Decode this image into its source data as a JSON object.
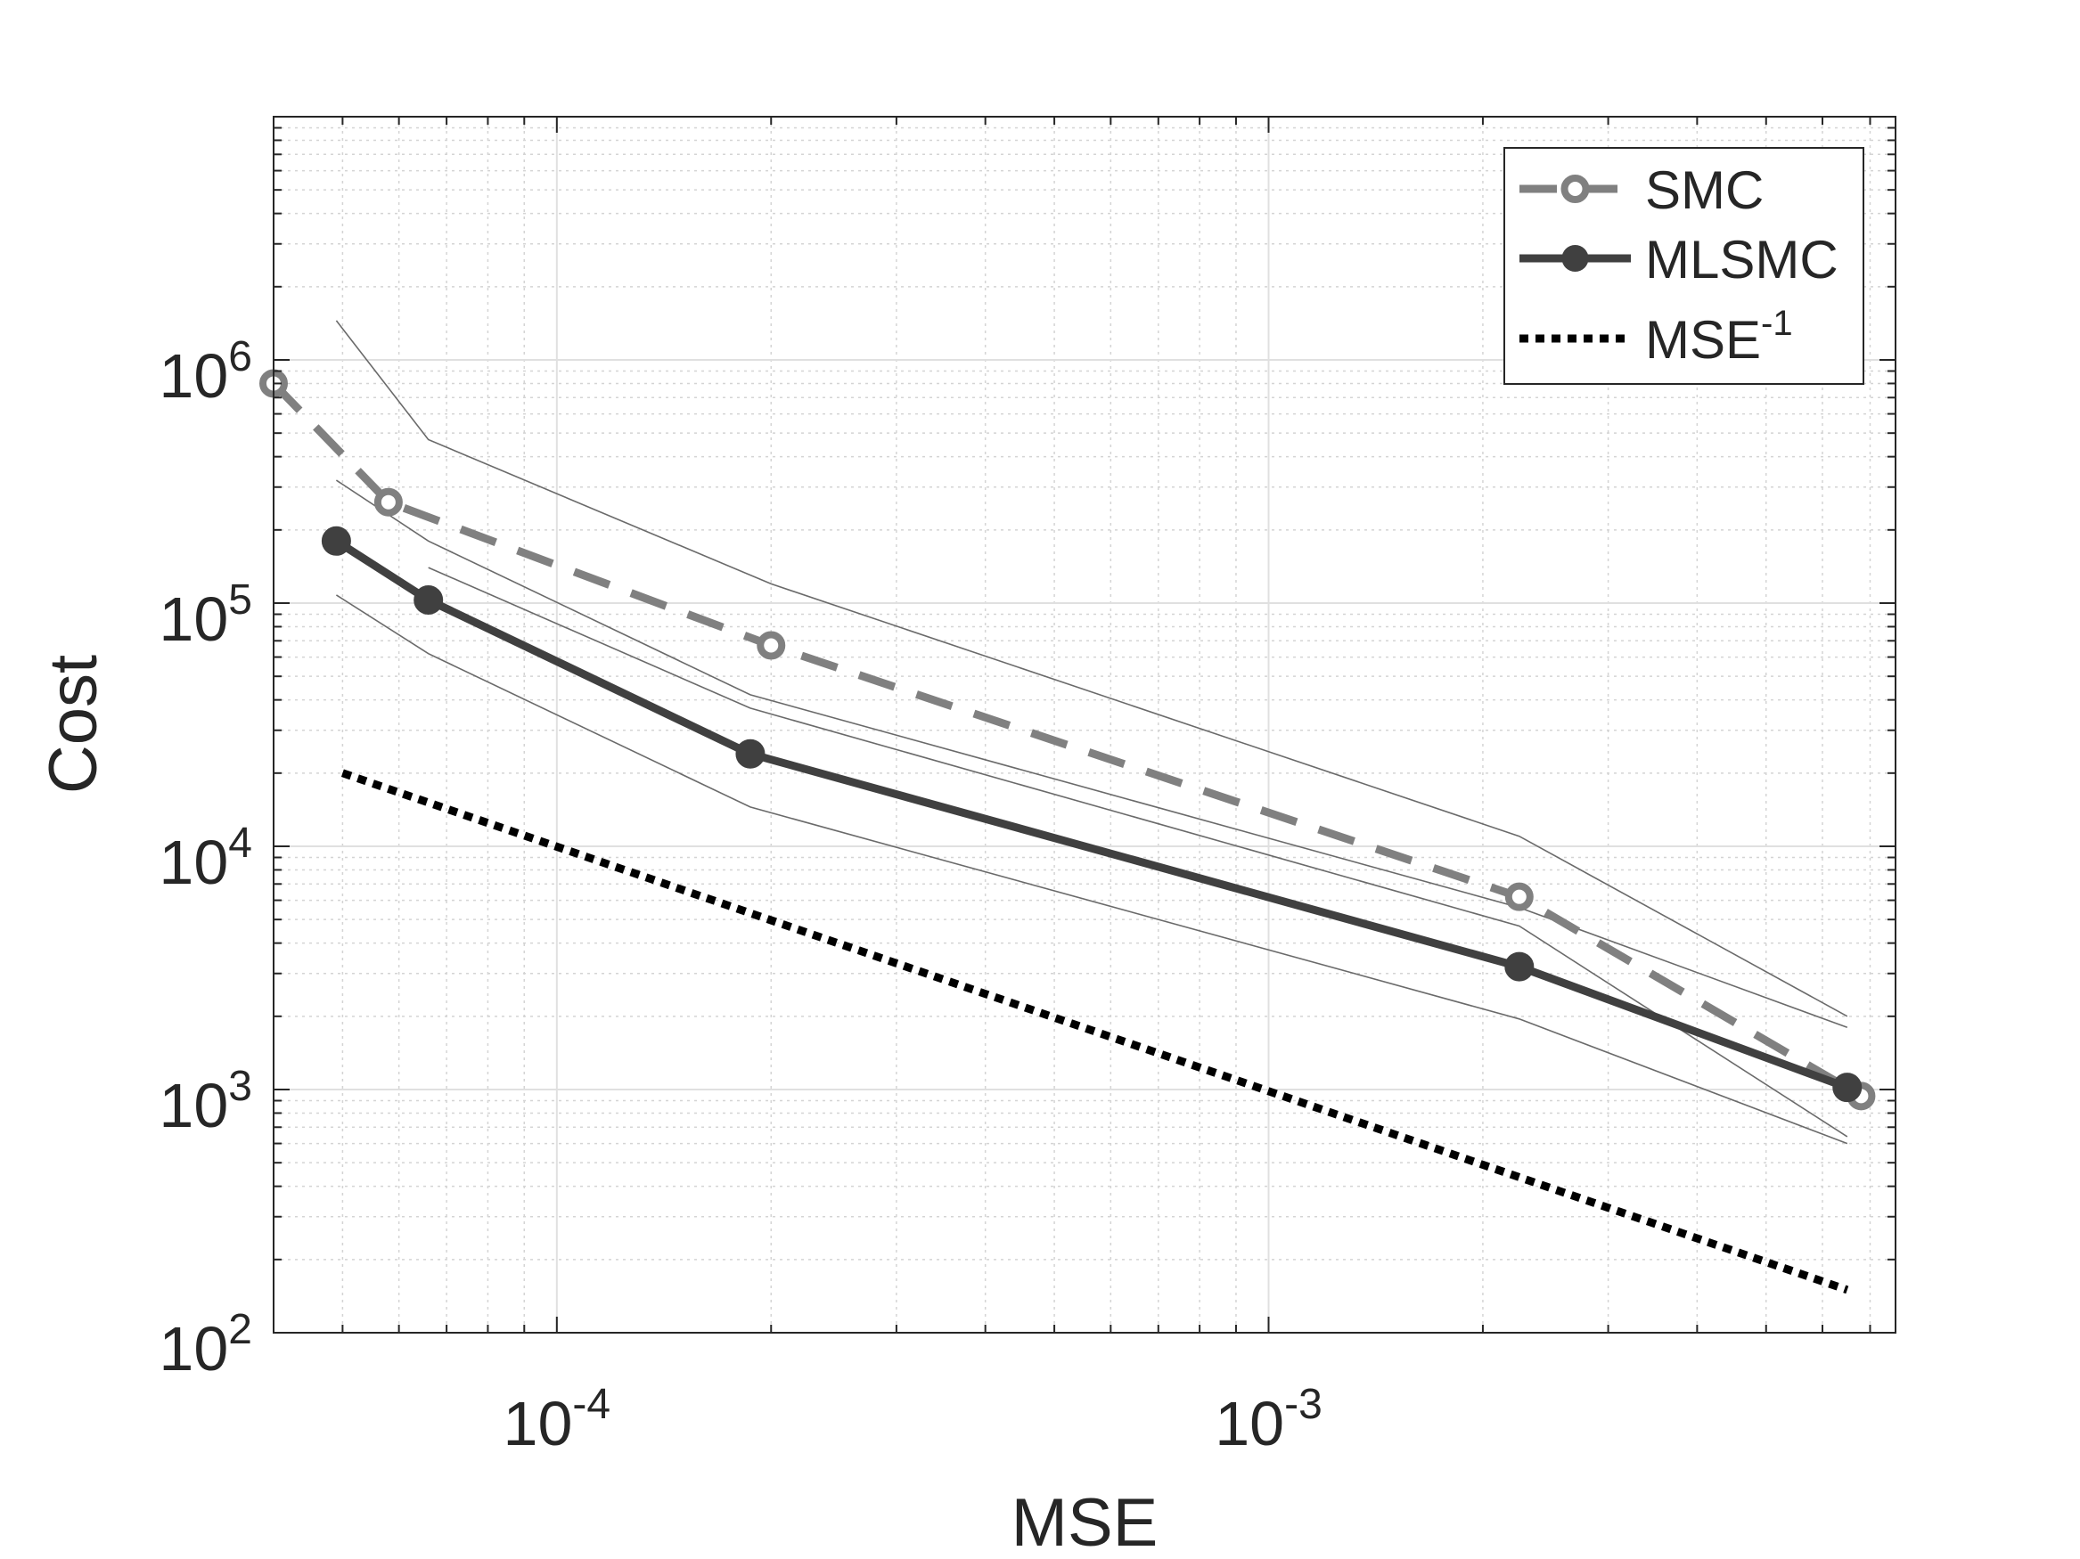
{
  "chart_data": {
    "type": "line",
    "xlabel": "MSE",
    "ylabel": "Cost",
    "x_scale": "log",
    "y_scale": "log",
    "xlim": [
      4e-05,
      0.0076
    ],
    "ylim": [
      100,
      10000000
    ],
    "grid": true,
    "minor_grid": true,
    "legend_position": "top-right",
    "x_ticks": [
      {
        "value": 0.0001,
        "base": "10",
        "exp": "-4"
      },
      {
        "value": 0.001,
        "base": "10",
        "exp": "-3"
      }
    ],
    "y_ticks": [
      {
        "value": 100,
        "base": "10",
        "exp": "2"
      },
      {
        "value": 1000,
        "base": "10",
        "exp": "3"
      },
      {
        "value": 10000,
        "base": "10",
        "exp": "4"
      },
      {
        "value": 100000,
        "base": "10",
        "exp": "5"
      },
      {
        "value": 1000000,
        "base": "10",
        "exp": "6"
      }
    ],
    "series": [
      {
        "name": "SMC",
        "style": "dashed-open-circle",
        "color": "#808080",
        "x": [
          4e-05,
          5.8e-05,
          0.0002,
          0.00225,
          0.0068
        ],
        "y": [
          800000,
          260000,
          67000,
          6200,
          940
        ]
      },
      {
        "name": "MLSMC",
        "style": "solid-filled-circle",
        "color": "#404040",
        "x": [
          4.9e-05,
          6.6e-05,
          0.000187,
          0.00225,
          0.0065
        ],
        "y": [
          180000,
          103000,
          24000,
          3200,
          1020
        ]
      },
      {
        "name_base": "MSE",
        "name_sup": "-1",
        "style": "dotted",
        "color": "#000000",
        "x": [
          5e-05,
          0.0065
        ],
        "y": [
          20000,
          150
        ]
      }
    ],
    "bounds": [
      {
        "color": "#6a6a6a",
        "x": [
          4.9e-05,
          6.6e-05,
          0.0002,
          0.00225,
          0.0065
        ],
        "y": [
          1450000,
          470000,
          120000,
          11000,
          2000
        ]
      },
      {
        "color": "#6a6a6a",
        "x": [
          4.9e-05,
          6.6e-05,
          0.000187,
          0.00225,
          0.0065
        ],
        "y": [
          320000,
          180000,
          42000,
          5600,
          1800
        ]
      },
      {
        "color": "#6a6a6a",
        "x": [
          4.9e-05,
          6.6e-05,
          0.000187,
          0.00225,
          0.0065
        ],
        "y": [
          108000,
          62000,
          14500,
          1950,
          600
        ]
      },
      {
        "color": "#6a6a6a",
        "x": [
          6.6e-05,
          0.000187,
          0.00225,
          0.0065
        ],
        "y": [
          140000,
          37000,
          4700,
          640
        ]
      }
    ]
  }
}
